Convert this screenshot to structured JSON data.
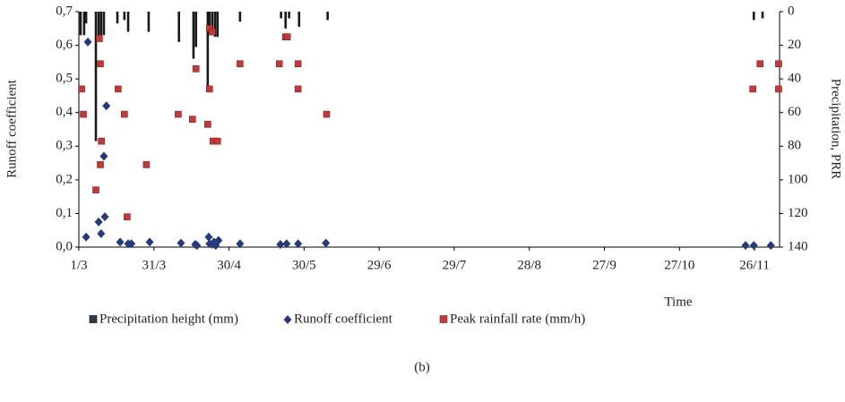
{
  "chart_data": {
    "type": "combo",
    "caption": "(b)",
    "y_label": "Runoff coefficient",
    "y2_label": "Precipitation, PRR",
    "x_label": "Time",
    "xlim": [
      0,
      280
    ],
    "xticks": [
      {
        "value": 0,
        "label": "1/3"
      },
      {
        "value": 30,
        "label": "31/3"
      },
      {
        "value": 60,
        "label": "30/4"
      },
      {
        "value": 90,
        "label": "30/5"
      },
      {
        "value": 120,
        "label": "29/6"
      },
      {
        "value": 150,
        "label": "29/7"
      },
      {
        "value": 180,
        "label": "28/8"
      },
      {
        "value": 210,
        "label": "27/9"
      },
      {
        "value": 240,
        "label": "27/10"
      },
      {
        "value": 270,
        "label": "26/11"
      }
    ],
    "ylim": [
      0,
      0.7
    ],
    "yticks": [
      {
        "value": 0,
        "label": "0,0"
      },
      {
        "value": 0.1,
        "label": "0,1"
      },
      {
        "value": 0.2,
        "label": "0,2"
      },
      {
        "value": 0.3,
        "label": "0,3"
      },
      {
        "value": 0.4,
        "label": "0,4"
      },
      {
        "value": 0.5,
        "label": "0,5"
      },
      {
        "value": 0.6,
        "label": "0,6"
      },
      {
        "value": 0.7,
        "label": "0,7"
      }
    ],
    "y2lim": [
      140,
      0
    ],
    "y2ticks": [
      0,
      20,
      40,
      60,
      80,
      100,
      120,
      140
    ],
    "series": [
      {
        "name": "Precipitation height (mm)",
        "kind": "bar",
        "axis": "y2",
        "color": "#1a1a1a",
        "legend_color": "#2e3b4a",
        "x": [
          0.7,
          2.1,
          2.9,
          6.8,
          7.9,
          8.9,
          10,
          15.4,
          18.2,
          19.7,
          27.9,
          40,
          45.8,
          46.8,
          51.5,
          52.2,
          53.3,
          54.4,
          55.4,
          64.4,
          80.8,
          82.6,
          84,
          88,
          99.4,
          269.7,
          273.2
        ],
        "values": [
          14,
          14,
          7,
          77,
          14,
          14,
          14,
          7,
          5,
          12,
          12,
          18,
          28,
          21,
          45,
          14,
          14,
          15,
          15,
          6,
          4,
          10,
          4,
          9,
          5,
          5,
          4
        ]
      },
      {
        "name": "Runoff coefficient",
        "kind": "diamond",
        "color": "#253a7a",
        "x": [
          2.9,
          3.6,
          7.9,
          8.9,
          10,
          10.4,
          11,
          16.5,
          19.7,
          21,
          28.3,
          40.8,
          46.5,
          47.2,
          51.9,
          52.2,
          53.3,
          54,
          54.7,
          55.8,
          64.4,
          80.5,
          83,
          87.6,
          98.7,
          266.4,
          269.7,
          276.5
        ],
        "values": [
          0.03,
          0.61,
          0.075,
          0.04,
          0.27,
          0.09,
          0.42,
          0.015,
          0.01,
          0.01,
          0.015,
          0.012,
          0.008,
          0.005,
          0.03,
          0.01,
          0.008,
          0.015,
          0.005,
          0.02,
          0.01,
          0.008,
          0.01,
          0.01,
          0.012,
          0.005,
          0.005,
          0.005
        ]
      },
      {
        "name": "Peak rainfall rate (mm/h)",
        "kind": "square",
        "axis": "y2",
        "color": "#c0393b",
        "x": [
          1.1,
          1.8,
          6.8,
          8.2,
          8.6,
          8.6,
          9,
          15.7,
          18.2,
          19.3,
          27,
          39.7,
          45.4,
          46.8,
          51.5,
          52.2,
          52.2,
          53.3,
          53.6,
          55.4,
          64.4,
          80.1,
          82.6,
          83.3,
          87.6,
          87.6,
          99,
          269.3,
          272.2,
          279.6,
          279.6
        ],
        "values": [
          46,
          61,
          106,
          16,
          31,
          91,
          77,
          46,
          61,
          122,
          91,
          61,
          64,
          34,
          67,
          46,
          10,
          12,
          77,
          77,
          31,
          31,
          15,
          15,
          31,
          46,
          61,
          46,
          31,
          31,
          46
        ]
      }
    ]
  }
}
